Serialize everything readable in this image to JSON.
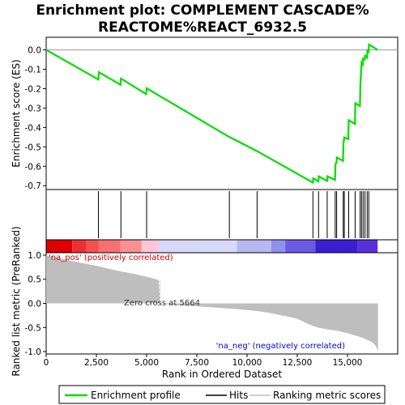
{
  "chart_data": [
    {
      "type": "line",
      "title_line1": "Enrichment plot: COMPLEMENT CASCADE%",
      "title_line2": "REACTOME%REACT_6932.5",
      "ylabel": "Enrichment score (ES)",
      "xlim": [
        0,
        17500
      ],
      "ylim": [
        -0.72,
        0.065
      ],
      "yticks": [
        "0.0",
        "-0.1",
        "-0.2",
        "-0.3",
        "-0.4",
        "-0.5",
        "-0.6",
        "-0.7"
      ],
      "ytick_values": [
        0.0,
        -0.1,
        -0.2,
        -0.3,
        -0.4,
        -0.5,
        -0.6,
        -0.7
      ],
      "series": [
        {
          "name": "Enrichment profile",
          "color": "#00dd00",
          "x": [
            0,
            2600,
            2620,
            3700,
            3720,
            4980,
            5000,
            9100,
            10500,
            13280,
            13300,
            13550,
            13570,
            13980,
            14000,
            14380,
            14400,
            14450,
            14470,
            14780,
            14800,
            14820,
            14840,
            15040,
            15060,
            15370,
            15390,
            15620,
            15640,
            15680,
            15700,
            15760,
            15780,
            15860,
            15880,
            15970,
            15990,
            16050,
            16070,
            16500
          ],
          "y": [
            0.0,
            -0.153,
            -0.115,
            -0.18,
            -0.148,
            -0.228,
            -0.198,
            -0.448,
            -0.522,
            -0.684,
            -0.662,
            -0.678,
            -0.652,
            -0.676,
            -0.652,
            -0.67,
            -0.59,
            -0.58,
            -0.555,
            -0.572,
            -0.48,
            -0.47,
            -0.452,
            -0.46,
            -0.362,
            -0.382,
            -0.275,
            -0.29,
            -0.18,
            -0.11,
            -0.065,
            -0.075,
            -0.045,
            -0.05,
            -0.03,
            -0.04,
            -0.005,
            -0.01,
            0.028,
            0.0
          ]
        }
      ]
    },
    {
      "type": "hits",
      "hit_positions": [
        2600,
        3720,
        5000,
        9120,
        10500,
        13280,
        13560,
        13990,
        14390,
        14460,
        14790,
        14840,
        15060,
        15380,
        15630,
        15700,
        15780,
        15870,
        15980,
        16060
      ],
      "heatmap_segments": [
        {
          "from": 0,
          "to": 1300,
          "color": "#dd0000"
        },
        {
          "from": 1300,
          "to": 2000,
          "color": "#ee3030"
        },
        {
          "from": 2000,
          "to": 2600,
          "color": "#f55050"
        },
        {
          "from": 2600,
          "to": 3700,
          "color": "#f87070"
        },
        {
          "from": 3700,
          "to": 4750,
          "color": "#fa9090"
        },
        {
          "from": 4750,
          "to": 5600,
          "color": "#fcc6d8"
        },
        {
          "from": 5600,
          "to": 9500,
          "color": "#d8d8fa"
        },
        {
          "from": 9500,
          "to": 11200,
          "color": "#b8b8f4"
        },
        {
          "from": 11200,
          "to": 11900,
          "color": "#9090ee"
        },
        {
          "from": 11900,
          "to": 13400,
          "color": "#6a5ae6"
        },
        {
          "from": 13400,
          "to": 15500,
          "color": "#3a1ed0"
        },
        {
          "from": 15500,
          "to": 16500,
          "color": "#5a30d8"
        }
      ]
    },
    {
      "type": "area",
      "ylabel": "Ranked list metric (PreRanked)",
      "xlabel": "Rank in Ordered Dataset",
      "xlim": [
        0,
        17500
      ],
      "ylim": [
        -1.05,
        1.05
      ],
      "yticks": [
        "1.0",
        "0.5",
        "0.0",
        "-0.5",
        "-1.0"
      ],
      "ytick_values": [
        1.0,
        0.5,
        0.0,
        -0.5,
        -1.0
      ],
      "xticks": [
        "0",
        "2,500",
        "5,000",
        "7,500",
        "10,000",
        "12,500",
        "15,000"
      ],
      "xtick_values": [
        0,
        2500,
        5000,
        7500,
        10000,
        12500,
        15000
      ],
      "x": [
        0,
        300,
        600,
        1000,
        1500,
        2000,
        2500,
        3000,
        3500,
        4000,
        4500,
        5000,
        5300,
        5600,
        5664,
        6500,
        7500,
        8500,
        9500,
        10500,
        11000,
        11500,
        12000,
        12500,
        13000,
        13500,
        14000,
        14500,
        15000,
        15500,
        15800,
        16000,
        16200,
        16350,
        16450,
        16520
      ],
      "values": [
        1.0,
        0.97,
        0.94,
        0.9,
        0.86,
        0.82,
        0.78,
        0.73,
        0.68,
        0.64,
        0.6,
        0.55,
        0.52,
        0.48,
        0.0,
        -0.04,
        -0.06,
        -0.09,
        -0.12,
        -0.16,
        -0.19,
        -0.23,
        -0.27,
        -0.32,
        -0.42,
        -0.5,
        -0.54,
        -0.57,
        -0.62,
        -0.68,
        -0.72,
        -0.76,
        -0.8,
        -0.85,
        -0.92,
        -1.0
      ],
      "color": "#bebebe",
      "zero_cross_label": "Zero cross at 5664",
      "pos_label": "'na_pos' (positively correlated)",
      "neg_label": "'na_neg' (negatively correlated)"
    }
  ],
  "legend": {
    "items": [
      {
        "label": "Enrichment profile",
        "color": "#00dd00"
      },
      {
        "label": "Hits",
        "color": "#000000"
      },
      {
        "label": "Ranking metric scores",
        "color": "#bebebe"
      }
    ]
  }
}
